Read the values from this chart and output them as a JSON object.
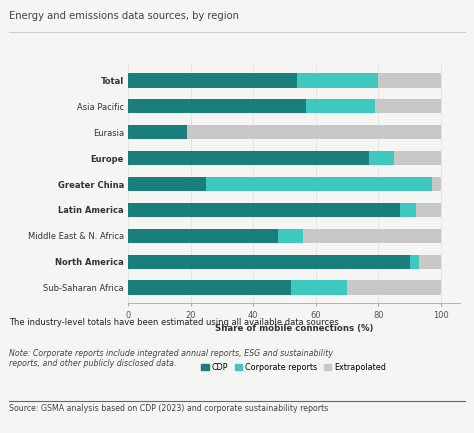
{
  "title": "Energy and emissions data sources, by region",
  "categories": [
    "Total",
    "Asia Pacific",
    "Eurasia",
    "Europe",
    "Greater China",
    "Latin America",
    "Middle East & N. Africa",
    "North America",
    "Sub-Saharan Africa"
  ],
  "cdp": [
    54,
    57,
    19,
    77,
    25,
    87,
    48,
    90,
    52
  ],
  "corporate": [
    26,
    22,
    0,
    8,
    72,
    5,
    8,
    3,
    18
  ],
  "extrapolated": [
    20,
    21,
    81,
    15,
    3,
    8,
    44,
    7,
    30
  ],
  "color_cdp": "#1a7f7a",
  "color_corporate": "#3ec8c0",
  "color_extrapolated": "#c8c8c6",
  "xlabel": "Share of mobile connections (%)",
  "legend_labels": [
    "CDP",
    "Corporate reports",
    "Extrapolated"
  ],
  "xticks": [
    0,
    20,
    40,
    60,
    80,
    100
  ],
  "footnote_bold": "The industry-level totals have been estimated using all available data sources",
  "footnote_italic": "Note: Corporate reports include integrated annual reports, ESG and sustainability\nreports, and other publicly disclosed data.",
  "source": "Source: GSMA analysis based on CDP (2023) and corporate sustainability reports",
  "bg_color": "#f5f5f3",
  "chart_bg": "#f5f5f3",
  "bold_entries": [
    "Total",
    "Europe",
    "Greater China",
    "Latin America",
    "North America"
  ]
}
